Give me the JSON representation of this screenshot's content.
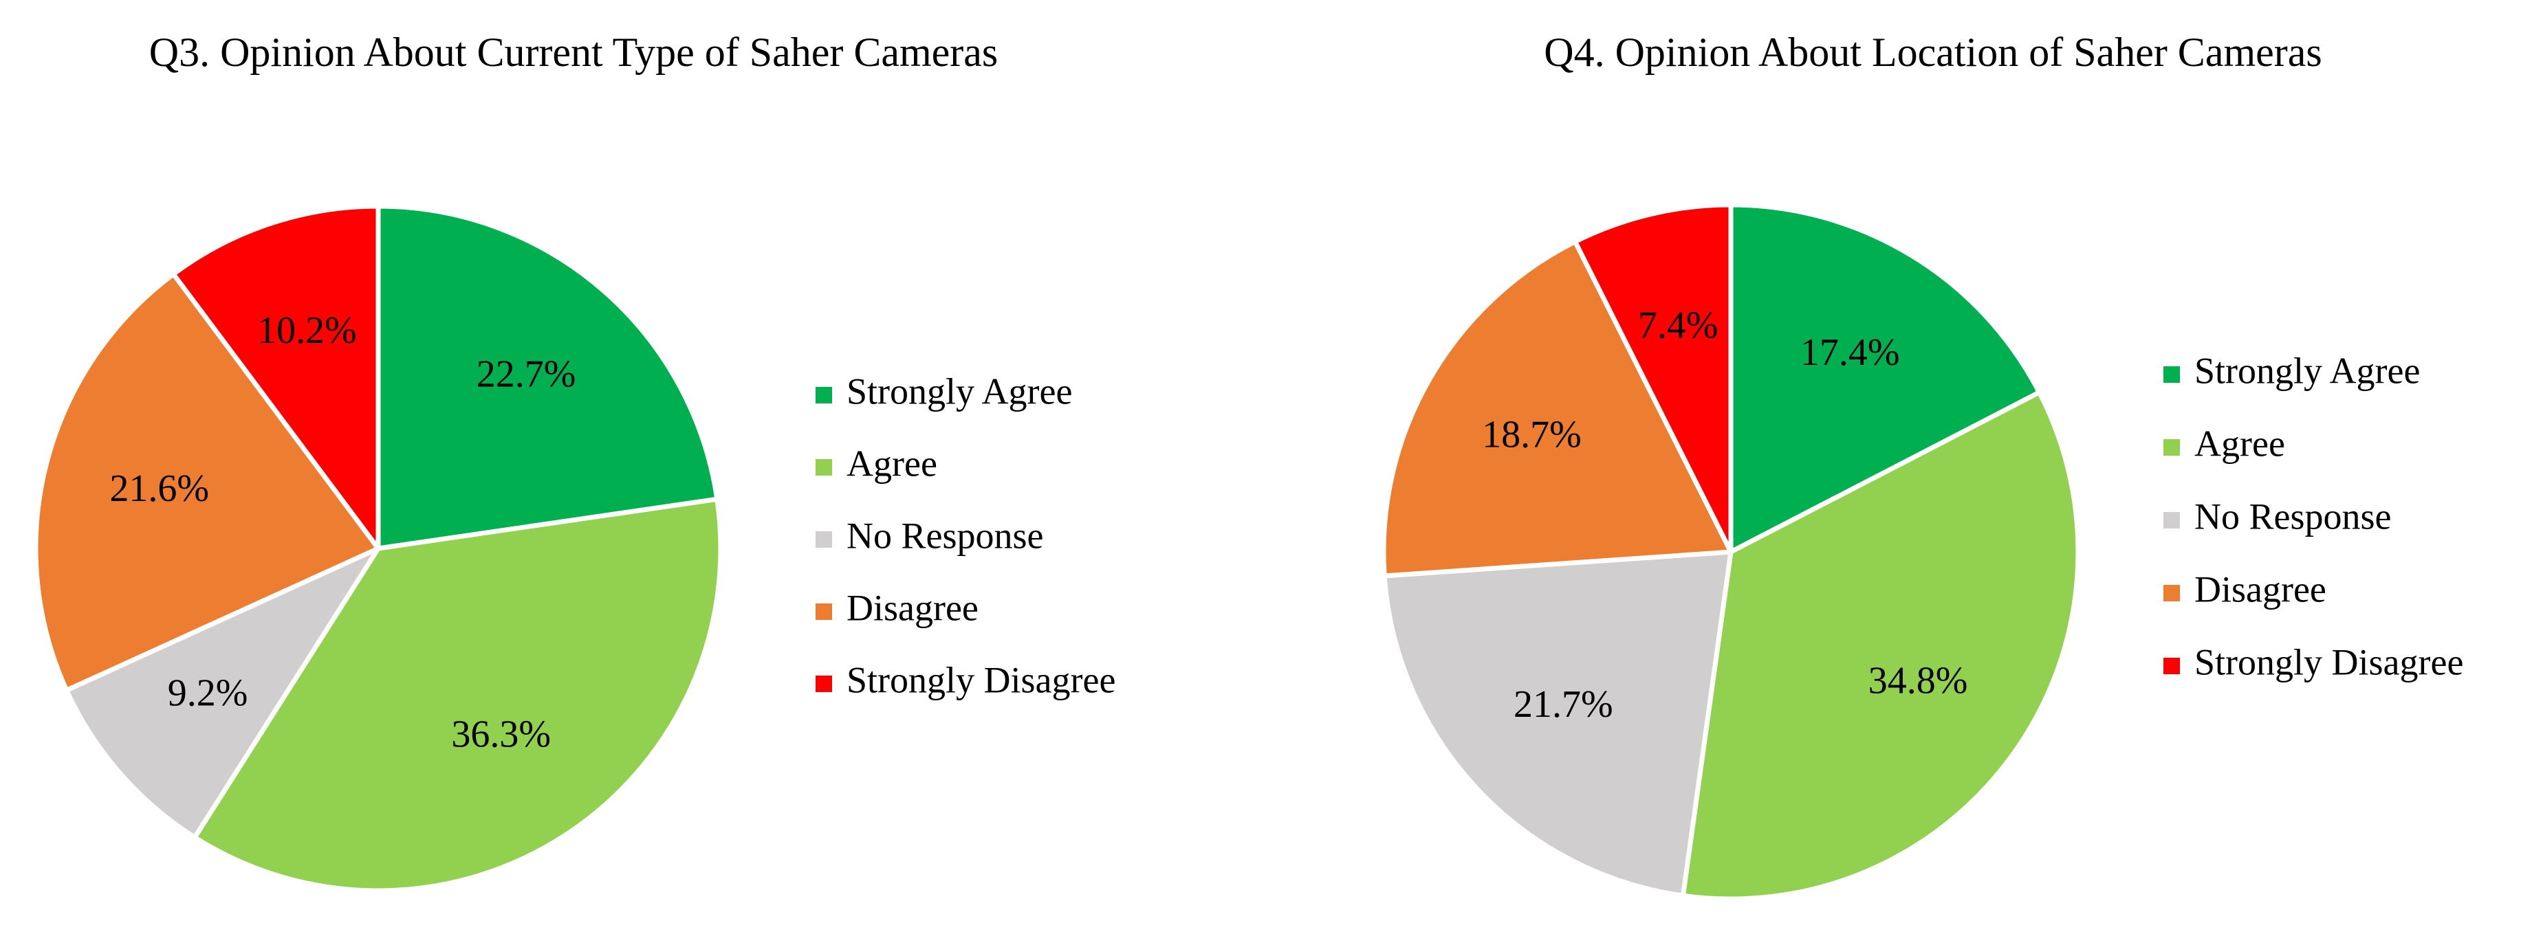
{
  "chart_data": [
    {
      "type": "pie",
      "title": "Q3.  Opinion About Current Type of Saher Cameras",
      "categories": [
        "Strongly Agree",
        "Agree",
        "No Response",
        "Disagree",
        "Strongly Disagree"
      ],
      "values": [
        22.7,
        36.3,
        9.2,
        21.6,
        10.2
      ],
      "value_labels": [
        "22.7%",
        "36.3%",
        "9.2%",
        "21.6%",
        "10.2%"
      ],
      "colors": [
        "#00b050",
        "#92d050",
        "#d0cece",
        "#ed7d31",
        "#ff0000"
      ],
      "legend": "right"
    },
    {
      "type": "pie",
      "title": "Q4.  Opinion About Location of Saher Cameras",
      "categories": [
        "Strongly Agree",
        "Agree",
        "No Response",
        "Disagree",
        "Strongly Disagree"
      ],
      "values": [
        17.4,
        34.8,
        21.7,
        18.7,
        7.4
      ],
      "value_labels": [
        "17.4%",
        "34.8%",
        "21.7%",
        "18.7%",
        "7.4%"
      ],
      "colors": [
        "#00b050",
        "#92d050",
        "#d0cece",
        "#ed7d31",
        "#ff0000"
      ],
      "legend": "right"
    }
  ]
}
